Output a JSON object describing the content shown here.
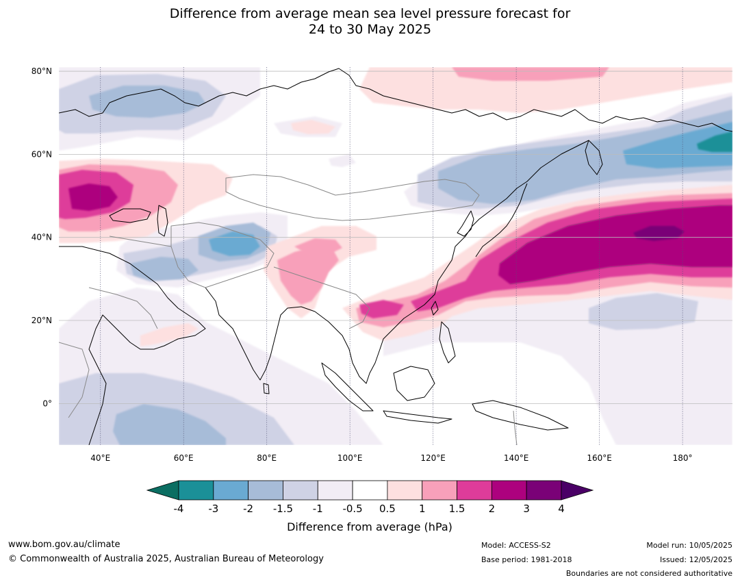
{
  "title": {
    "line1": "Difference from average mean sea level pressure forecast for",
    "line2": "24 to 30 May 2025"
  },
  "map": {
    "extent": {
      "lon": [
        30,
        192
      ],
      "lat": [
        -10,
        81
      ]
    },
    "lat_ticks": [
      {
        "value": 80,
        "label": "80°N"
      },
      {
        "value": 60,
        "label": "60°N"
      },
      {
        "value": 40,
        "label": "40°N"
      },
      {
        "value": 20,
        "label": "20°N"
      },
      {
        "value": 0,
        "label": "0°"
      }
    ],
    "lon_ticks": [
      {
        "value": 40,
        "label": "40°E"
      },
      {
        "value": 60,
        "label": "60°E"
      },
      {
        "value": 80,
        "label": "80°E"
      },
      {
        "value": 100,
        "label": "100°E"
      },
      {
        "value": 120,
        "label": "120°E"
      },
      {
        "value": 140,
        "label": "140°E"
      },
      {
        "value": 160,
        "label": "160°E"
      },
      {
        "value": 180,
        "label": "180°"
      }
    ],
    "colors": {
      "neg_4_below": "#0b6e62",
      "neg_3_4": "#1b9098",
      "neg_2_3": "#6aaad2",
      "neg_1_5_2": "#a7bcd8",
      "neg_1_1_5": "#cfd2e5",
      "neg_0_5_1": "#f2edf5",
      "pos_0_5_1": "#fde0e0",
      "pos_1_1_5": "#f8a0ba",
      "pos_1_5_2": "#de3c9a",
      "pos_2_3": "#ad017e",
      "pos_3_4": "#7a0177",
      "coast": "#000000",
      "border": "#888888"
    }
  },
  "colorbar": {
    "ticks": [
      "-4",
      "-3",
      "-2",
      "-1.5",
      "-1",
      "-0.5",
      "0.5",
      "1",
      "1.5",
      "2",
      "3",
      "4"
    ],
    "colors": [
      "#1b9098",
      "#6aaad2",
      "#a7bcd8",
      "#cfd2e5",
      "#f2edf5",
      "#ffffff",
      "#fde0e0",
      "#f8a0ba",
      "#de3c9a",
      "#ad017e",
      "#7a0177"
    ],
    "low_extend_color": "#0b6e62",
    "high_extend_color": "#4a0066",
    "label": "Difference from average (hPa)"
  },
  "footer": {
    "website": "www.bom.gov.au/climate",
    "copyright": "© Commonwealth of Australia 2025, Australian Bureau of Meteorology",
    "model": "Model: ACCESS-S2",
    "base_period": "Base period: 1981-2018",
    "model_run": "Model run: 10/05/2025",
    "issued": "Issued: 12/05/2025",
    "disclaimer": "Boundaries are not considered authoritative"
  }
}
